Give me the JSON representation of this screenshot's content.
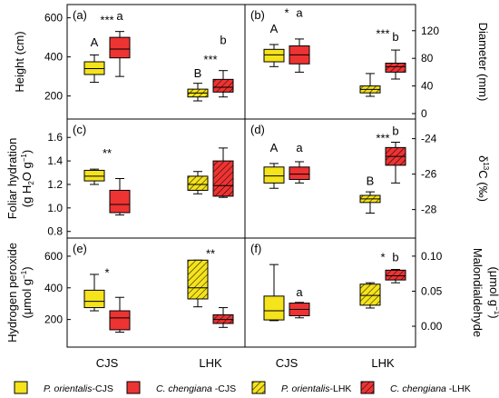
{
  "colors": {
    "po": "#f5e31b",
    "cc": "#ee3333",
    "stroke": "#000000"
  },
  "chart_data": [
    {
      "panel_label": "(a)",
      "axis_side": "left",
      "type": "box",
      "ylabel": "Height (cm)",
      "ylim": [
        110,
        640
      ],
      "yticks": [
        200,
        400,
        600
      ],
      "categories": [
        "CJS",
        "LHK"
      ],
      "boxes": [
        {
          "group": "CJS",
          "species": "po",
          "min": 270,
          "q1": 310,
          "median": 340,
          "q3": 375,
          "max": 410
        },
        {
          "group": "CJS",
          "species": "cc",
          "min": 300,
          "q1": 395,
          "median": 440,
          "q3": 500,
          "max": 530
        },
        {
          "group": "LHK",
          "species": "po",
          "min": 175,
          "q1": 195,
          "median": 215,
          "q3": 235,
          "max": 265
        },
        {
          "group": "LHK",
          "species": "cc",
          "min": 195,
          "q1": 220,
          "median": 245,
          "q3": 285,
          "max": 330
        }
      ],
      "annotations": [
        {
          "text": "A",
          "group": "CJS",
          "species": "po",
          "y": 455
        },
        {
          "text": "***",
          "group": "CJS",
          "species": "mid",
          "y": 568
        },
        {
          "text": "a",
          "group": "CJS",
          "species": "cc",
          "y": 590
        },
        {
          "text": "B",
          "group": "LHK",
          "species": "po",
          "y": 295
        },
        {
          "text": "***",
          "group": "LHK",
          "species": "mid",
          "y": 365
        },
        {
          "text": "b",
          "group": "LHK",
          "species": "cc",
          "y": 465
        }
      ]
    },
    {
      "panel_label": "(b)",
      "axis_side": "right",
      "type": "box",
      "ylabel": "Diameter (mm)",
      "ylim": [
        0,
        150
      ],
      "yticks": [
        0,
        40,
        80,
        120
      ],
      "categories": [
        "CJS",
        "LHK"
      ],
      "boxes": [
        {
          "group": "CJS",
          "species": "po",
          "min": 68,
          "q1": 75,
          "median": 85,
          "q3": 93,
          "max": 100
        },
        {
          "group": "CJS",
          "species": "cc",
          "min": 60,
          "q1": 72,
          "median": 85,
          "q3": 98,
          "max": 108
        },
        {
          "group": "LHK",
          "species": "po",
          "min": 25,
          "q1": 30,
          "median": 35,
          "q3": 40,
          "max": 58
        },
        {
          "group": "LHK",
          "species": "cc",
          "min": 50,
          "q1": 60,
          "median": 68,
          "q3": 73,
          "max": 92
        }
      ],
      "annotations": [
        {
          "text": "A",
          "group": "CJS",
          "species": "po",
          "y": 117
        },
        {
          "text": "*",
          "group": "CJS",
          "species": "mid",
          "y": 140
        },
        {
          "text": "a",
          "group": "CJS",
          "species": "cc",
          "y": 140
        },
        {
          "text": "***",
          "group": "LHK",
          "species": "mid",
          "y": 110
        },
        {
          "text": "b",
          "group": "LHK",
          "species": "cc",
          "y": 105
        }
      ]
    },
    {
      "panel_label": "(c)",
      "axis_side": "left",
      "type": "box",
      "ylabel": "Foliar hydration",
      "ylabel2": "(g H2O g−1)",
      "ylim": [
        0.79,
        1.71
      ],
      "yticks": [
        0.8,
        1.0,
        1.2,
        1.4,
        1.6
      ],
      "categories": [
        "CJS",
        "LHK"
      ],
      "boxes": [
        {
          "group": "CJS",
          "species": "po",
          "min": 1.2,
          "q1": 1.23,
          "median": 1.27,
          "q3": 1.32,
          "max": 1.33
        },
        {
          "group": "CJS",
          "species": "cc",
          "min": 0.94,
          "q1": 0.96,
          "median": 1.03,
          "q3": 1.15,
          "max": 1.25
        },
        {
          "group": "LHK",
          "species": "po",
          "min": 1.12,
          "q1": 1.15,
          "median": 1.2,
          "q3": 1.27,
          "max": 1.31
        },
        {
          "group": "LHK",
          "species": "cc",
          "min": 1.09,
          "q1": 1.1,
          "median": 1.19,
          "q3": 1.4,
          "max": 1.51
        }
      ],
      "annotations": [
        {
          "text": "**",
          "group": "CJS",
          "species": "mid",
          "y": 1.43
        }
      ]
    },
    {
      "panel_label": "(d)",
      "axis_side": "right",
      "type": "box",
      "ylabel": "δ13C (‰)",
      "ylim": [
        -29.3,
        -23.2
      ],
      "yticks": [
        -28,
        -26,
        -24
      ],
      "categories": [
        "CJS",
        "LHK"
      ],
      "boxes": [
        {
          "group": "CJS",
          "species": "po",
          "min": -26.8,
          "q1": -26.5,
          "median": -26.1,
          "q3": -25.6,
          "max": -25.4
        },
        {
          "group": "CJS",
          "species": "cc",
          "min": -26.5,
          "q1": -26.3,
          "median": -26.0,
          "q3": -25.6,
          "max": -25.3
        },
        {
          "group": "LHK",
          "species": "po",
          "min": -28.2,
          "q1": -27.6,
          "median": -27.4,
          "q3": -27.2,
          "max": -27.0
        },
        {
          "group": "LHK",
          "species": "cc",
          "min": -26.5,
          "q1": -25.5,
          "median": -25.0,
          "q3": -24.5,
          "max": -24.2
        }
      ],
      "annotations": [
        {
          "text": "A",
          "group": "CJS",
          "species": "po",
          "y": -24.75
        },
        {
          "text": "a",
          "group": "CJS",
          "species": "cc",
          "y": -24.75
        },
        {
          "text": "B",
          "group": "LHK",
          "species": "po",
          "y": -26.6
        },
        {
          "text": "***",
          "group": "LHK",
          "species": "mid",
          "y": -24.2
        },
        {
          "text": "b",
          "group": "LHK",
          "species": "cc",
          "y": -23.8
        }
      ]
    },
    {
      "panel_label": "(e)",
      "axis_side": "left",
      "type": "box",
      "ylabel": "Hydrogen peroxide",
      "ylabel2": "(μmol g−1)",
      "ylim": [
        60,
        680
      ],
      "yticks": [
        200,
        400,
        600
      ],
      "categories": [
        "CJS",
        "LHK"
      ],
      "boxes": [
        {
          "group": "CJS",
          "species": "po",
          "min": 255,
          "q1": 275,
          "median": 315,
          "q3": 385,
          "max": 485
        },
        {
          "group": "CJS",
          "species": "cc",
          "min": 120,
          "q1": 135,
          "median": 210,
          "q3": 255,
          "max": 340
        },
        {
          "group": "LHK",
          "species": "po",
          "min": 280,
          "q1": 330,
          "median": 400,
          "q3": 575,
          "max": 575
        },
        {
          "group": "LHK",
          "species": "cc",
          "min": 150,
          "q1": 175,
          "median": 200,
          "q3": 230,
          "max": 275
        }
      ],
      "annotations": [
        {
          "text": "*",
          "group": "CJS",
          "species": "mid",
          "y": 470
        },
        {
          "text": "**",
          "group": "LHK",
          "species": "mid",
          "y": 590
        }
      ]
    },
    {
      "panel_label": "(f)",
      "axis_side": "right",
      "type": "box",
      "ylabel": "Malondialdehyde",
      "ylabel2": "(μmol g−1)",
      "ylim": [
        -0.022,
        0.118
      ],
      "yticks": [
        0.0,
        0.05,
        0.1
      ],
      "tick_format": "0.00",
      "categories": [
        "CJS",
        "LHK"
      ],
      "boxes": [
        {
          "group": "CJS",
          "species": "po",
          "min": 0.008,
          "q1": 0.009,
          "median": 0.022,
          "q3": 0.043,
          "max": 0.088
        },
        {
          "group": "CJS",
          "species": "cc",
          "min": 0.012,
          "q1": 0.015,
          "median": 0.024,
          "q3": 0.033,
          "max": 0.034
        },
        {
          "group": "LHK",
          "species": "po",
          "min": 0.026,
          "q1": 0.03,
          "median": 0.044,
          "q3": 0.06,
          "max": 0.062
        },
        {
          "group": "LHK",
          "species": "cc",
          "min": 0.062,
          "q1": 0.066,
          "median": 0.072,
          "q3": 0.08,
          "max": 0.081
        }
      ],
      "annotations": [
        {
          "text": "a",
          "group": "CJS",
          "species": "cc",
          "y": 0.043
        },
        {
          "text": "*",
          "group": "LHK",
          "species": "mid",
          "y": 0.093
        },
        {
          "text": "b",
          "group": "LHK",
          "species": "cc",
          "y": 0.093
        }
      ]
    }
  ],
  "x_tick_labels": [
    "CJS",
    "LHK"
  ],
  "legend": [
    {
      "species": "po",
      "hatched": false,
      "name": "P. orientalis",
      "suffix": "-CJS"
    },
    {
      "species": "cc",
      "hatched": false,
      "name": "C. chengiana",
      "suffix": " -CJS"
    },
    {
      "species": "po",
      "hatched": true,
      "name": "P. orientalis",
      "suffix": "-LHK"
    },
    {
      "species": "cc",
      "hatched": true,
      "name": "C. chengiana",
      "suffix": " -LHK"
    }
  ]
}
